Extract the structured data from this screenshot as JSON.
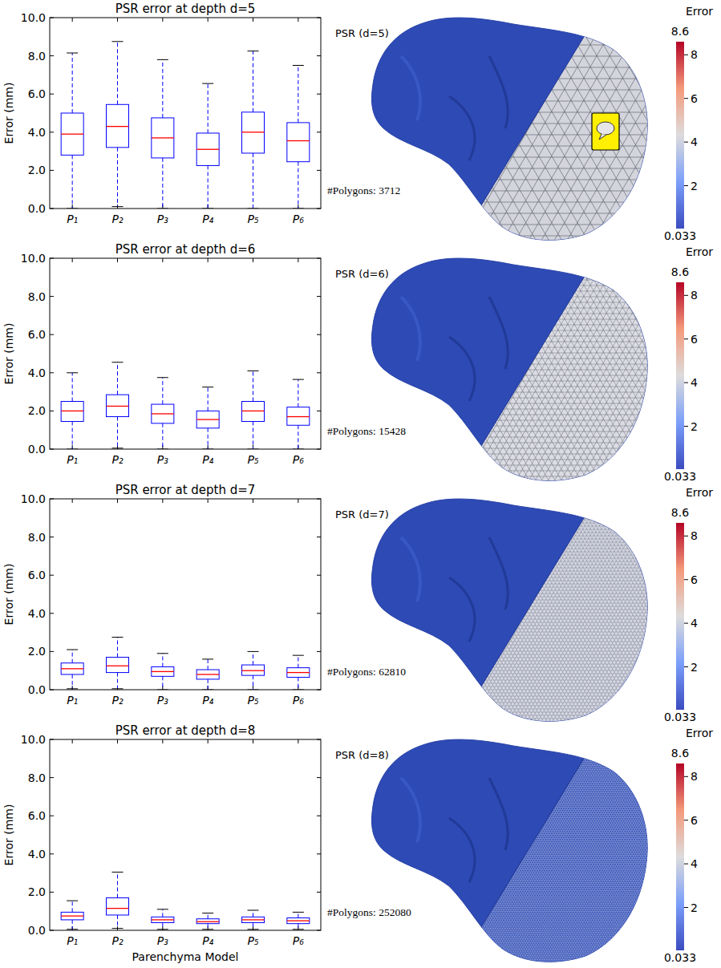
{
  "chart_data": [
    {
      "type": "box",
      "title": "PSR error at depth d=5",
      "y_label": "Error (mm)",
      "categories": [
        "P₁",
        "P₂",
        "P₃",
        "P₄",
        "P₅",
        "P₆"
      ],
      "boxes": [
        {
          "min": 0.0,
          "q1": 2.8,
          "median": 3.9,
          "q3": 5.0,
          "max": 8.15
        },
        {
          "min": 0.1,
          "q1": 3.2,
          "median": 4.3,
          "q3": 5.45,
          "max": 8.75
        },
        {
          "min": 0.0,
          "q1": 2.65,
          "median": 3.7,
          "q3": 4.75,
          "max": 7.8
        },
        {
          "min": 0.0,
          "q1": 2.25,
          "median": 3.1,
          "q3": 3.95,
          "max": 6.55
        },
        {
          "min": 0.0,
          "q1": 2.9,
          "median": 4.0,
          "q3": 5.05,
          "max": 8.25
        },
        {
          "min": 0.0,
          "q1": 2.45,
          "median": 3.55,
          "q3": 4.5,
          "max": 7.5
        }
      ],
      "ylim": [
        0,
        10
      ],
      "yticks": [
        {
          "value": 0,
          "label": "0.0"
        },
        {
          "value": 2,
          "label": "2.0"
        },
        {
          "value": 4,
          "label": "4.0"
        },
        {
          "value": 6,
          "label": "6.0"
        },
        {
          "value": 8,
          "label": "8.0"
        },
        {
          "value": 10,
          "label": "10.0"
        }
      ],
      "grid": false
    },
    {
      "type": "box",
      "title": "PSR error at depth d=6",
      "y_label": "Error (mm)",
      "categories": [
        "P₁",
        "P₂",
        "P₃",
        "P₄",
        "P₅",
        "P₆"
      ],
      "boxes": [
        {
          "min": 0.0,
          "q1": 1.45,
          "median": 2.0,
          "q3": 2.5,
          "max": 4.0
        },
        {
          "min": 0.05,
          "q1": 1.7,
          "median": 2.25,
          "q3": 2.85,
          "max": 4.55
        },
        {
          "min": 0.0,
          "q1": 1.35,
          "median": 1.85,
          "q3": 2.35,
          "max": 3.75
        },
        {
          "min": 0.0,
          "q1": 1.1,
          "median": 1.55,
          "q3": 2.0,
          "max": 3.25
        },
        {
          "min": 0.0,
          "q1": 1.45,
          "median": 2.0,
          "q3": 2.5,
          "max": 4.1
        },
        {
          "min": 0.0,
          "q1": 1.25,
          "median": 1.7,
          "q3": 2.2,
          "max": 3.65
        }
      ],
      "ylim": [
        0,
        10
      ],
      "yticks": [
        {
          "value": 0,
          "label": "0.0"
        },
        {
          "value": 2,
          "label": "2.0"
        },
        {
          "value": 4,
          "label": "4.0"
        },
        {
          "value": 6,
          "label": "6.0"
        },
        {
          "value": 8,
          "label": "8.0"
        },
        {
          "value": 10,
          "label": "10.0"
        }
      ],
      "grid": false
    },
    {
      "type": "box",
      "title": "PSR error at depth d=7",
      "y_label": "Error (mm)",
      "categories": [
        "P₁",
        "P₂",
        "P₃",
        "P₄",
        "P₅",
        "P₆"
      ],
      "boxes": [
        {
          "min": 0.05,
          "q1": 0.8,
          "median": 1.1,
          "q3": 1.4,
          "max": 2.1
        },
        {
          "min": 0.05,
          "q1": 0.9,
          "median": 1.25,
          "q3": 1.7,
          "max": 2.75
        },
        {
          "min": 0.0,
          "q1": 0.7,
          "median": 0.95,
          "q3": 1.2,
          "max": 1.9
        },
        {
          "min": 0.0,
          "q1": 0.55,
          "median": 0.8,
          "q3": 1.05,
          "max": 1.6
        },
        {
          "min": 0.0,
          "q1": 0.75,
          "median": 1.0,
          "q3": 1.3,
          "max": 2.0
        },
        {
          "min": 0.0,
          "q1": 0.65,
          "median": 0.9,
          "q3": 1.15,
          "max": 1.8
        }
      ],
      "ylim": [
        0,
        10
      ],
      "yticks": [
        {
          "value": 0,
          "label": "0.0"
        },
        {
          "value": 2,
          "label": "2.0"
        },
        {
          "value": 4,
          "label": "4.0"
        },
        {
          "value": 6,
          "label": "6.0"
        },
        {
          "value": 8,
          "label": "8.0"
        },
        {
          "value": 10,
          "label": "10.0"
        }
      ],
      "grid": false
    },
    {
      "type": "box",
      "title": "PSR error at depth d=8",
      "y_label": "Error (mm)",
      "x_label": "Parenchyma Model",
      "categories": [
        "P₁",
        "P₂",
        "P₃",
        "P₄",
        "P₅",
        "P₆"
      ],
      "boxes": [
        {
          "min": 0.05,
          "q1": 0.55,
          "median": 0.75,
          "q3": 0.95,
          "max": 1.55
        },
        {
          "min": 0.1,
          "q1": 0.8,
          "median": 1.15,
          "q3": 1.7,
          "max": 3.05
        },
        {
          "min": 0.05,
          "q1": 0.4,
          "median": 0.55,
          "q3": 0.7,
          "max": 1.1
        },
        {
          "min": 0.05,
          "q1": 0.35,
          "median": 0.45,
          "q3": 0.6,
          "max": 0.9
        },
        {
          "min": 0.05,
          "q1": 0.4,
          "median": 0.55,
          "q3": 0.7,
          "max": 1.05
        },
        {
          "min": 0.05,
          "q1": 0.35,
          "median": 0.5,
          "q3": 0.65,
          "max": 0.95
        }
      ],
      "ylim": [
        0,
        10
      ],
      "yticks": [
        {
          "value": 0,
          "label": "0.0"
        },
        {
          "value": 2,
          "label": "2.0"
        },
        {
          "value": 4,
          "label": "4.0"
        },
        {
          "value": 6,
          "label": "6.0"
        },
        {
          "value": 8,
          "label": "8.0"
        },
        {
          "value": 10,
          "label": "10.0"
        }
      ],
      "grid": false
    }
  ],
  "renders": [
    {
      "label": "PSR (d=5)",
      "polygons": "#Polygons: 3712",
      "colorbar": {
        "title": "Error",
        "range": [
          0.033,
          8.6
        ],
        "ticks": [
          2,
          4,
          6,
          8
        ]
      }
    },
    {
      "label": "PSR (d=6)",
      "polygons": "#Polygons: 15428",
      "colorbar": {
        "title": "Error",
        "range": [
          0.033,
          8.6
        ],
        "ticks": [
          2,
          4,
          6,
          8
        ]
      }
    },
    {
      "label": "PSR (d=7)",
      "polygons": "#Polygons: 62810",
      "colorbar": {
        "title": "Error",
        "range": [
          0.033,
          8.6
        ],
        "ticks": [
          2,
          4,
          6,
          8
        ]
      }
    },
    {
      "label": "PSR (d=8)",
      "polygons": "#Polygons: 252080",
      "colorbar": {
        "title": "Error",
        "range": [
          0.033,
          8.6
        ],
        "ticks": [
          2,
          4,
          6,
          8
        ]
      }
    }
  ]
}
